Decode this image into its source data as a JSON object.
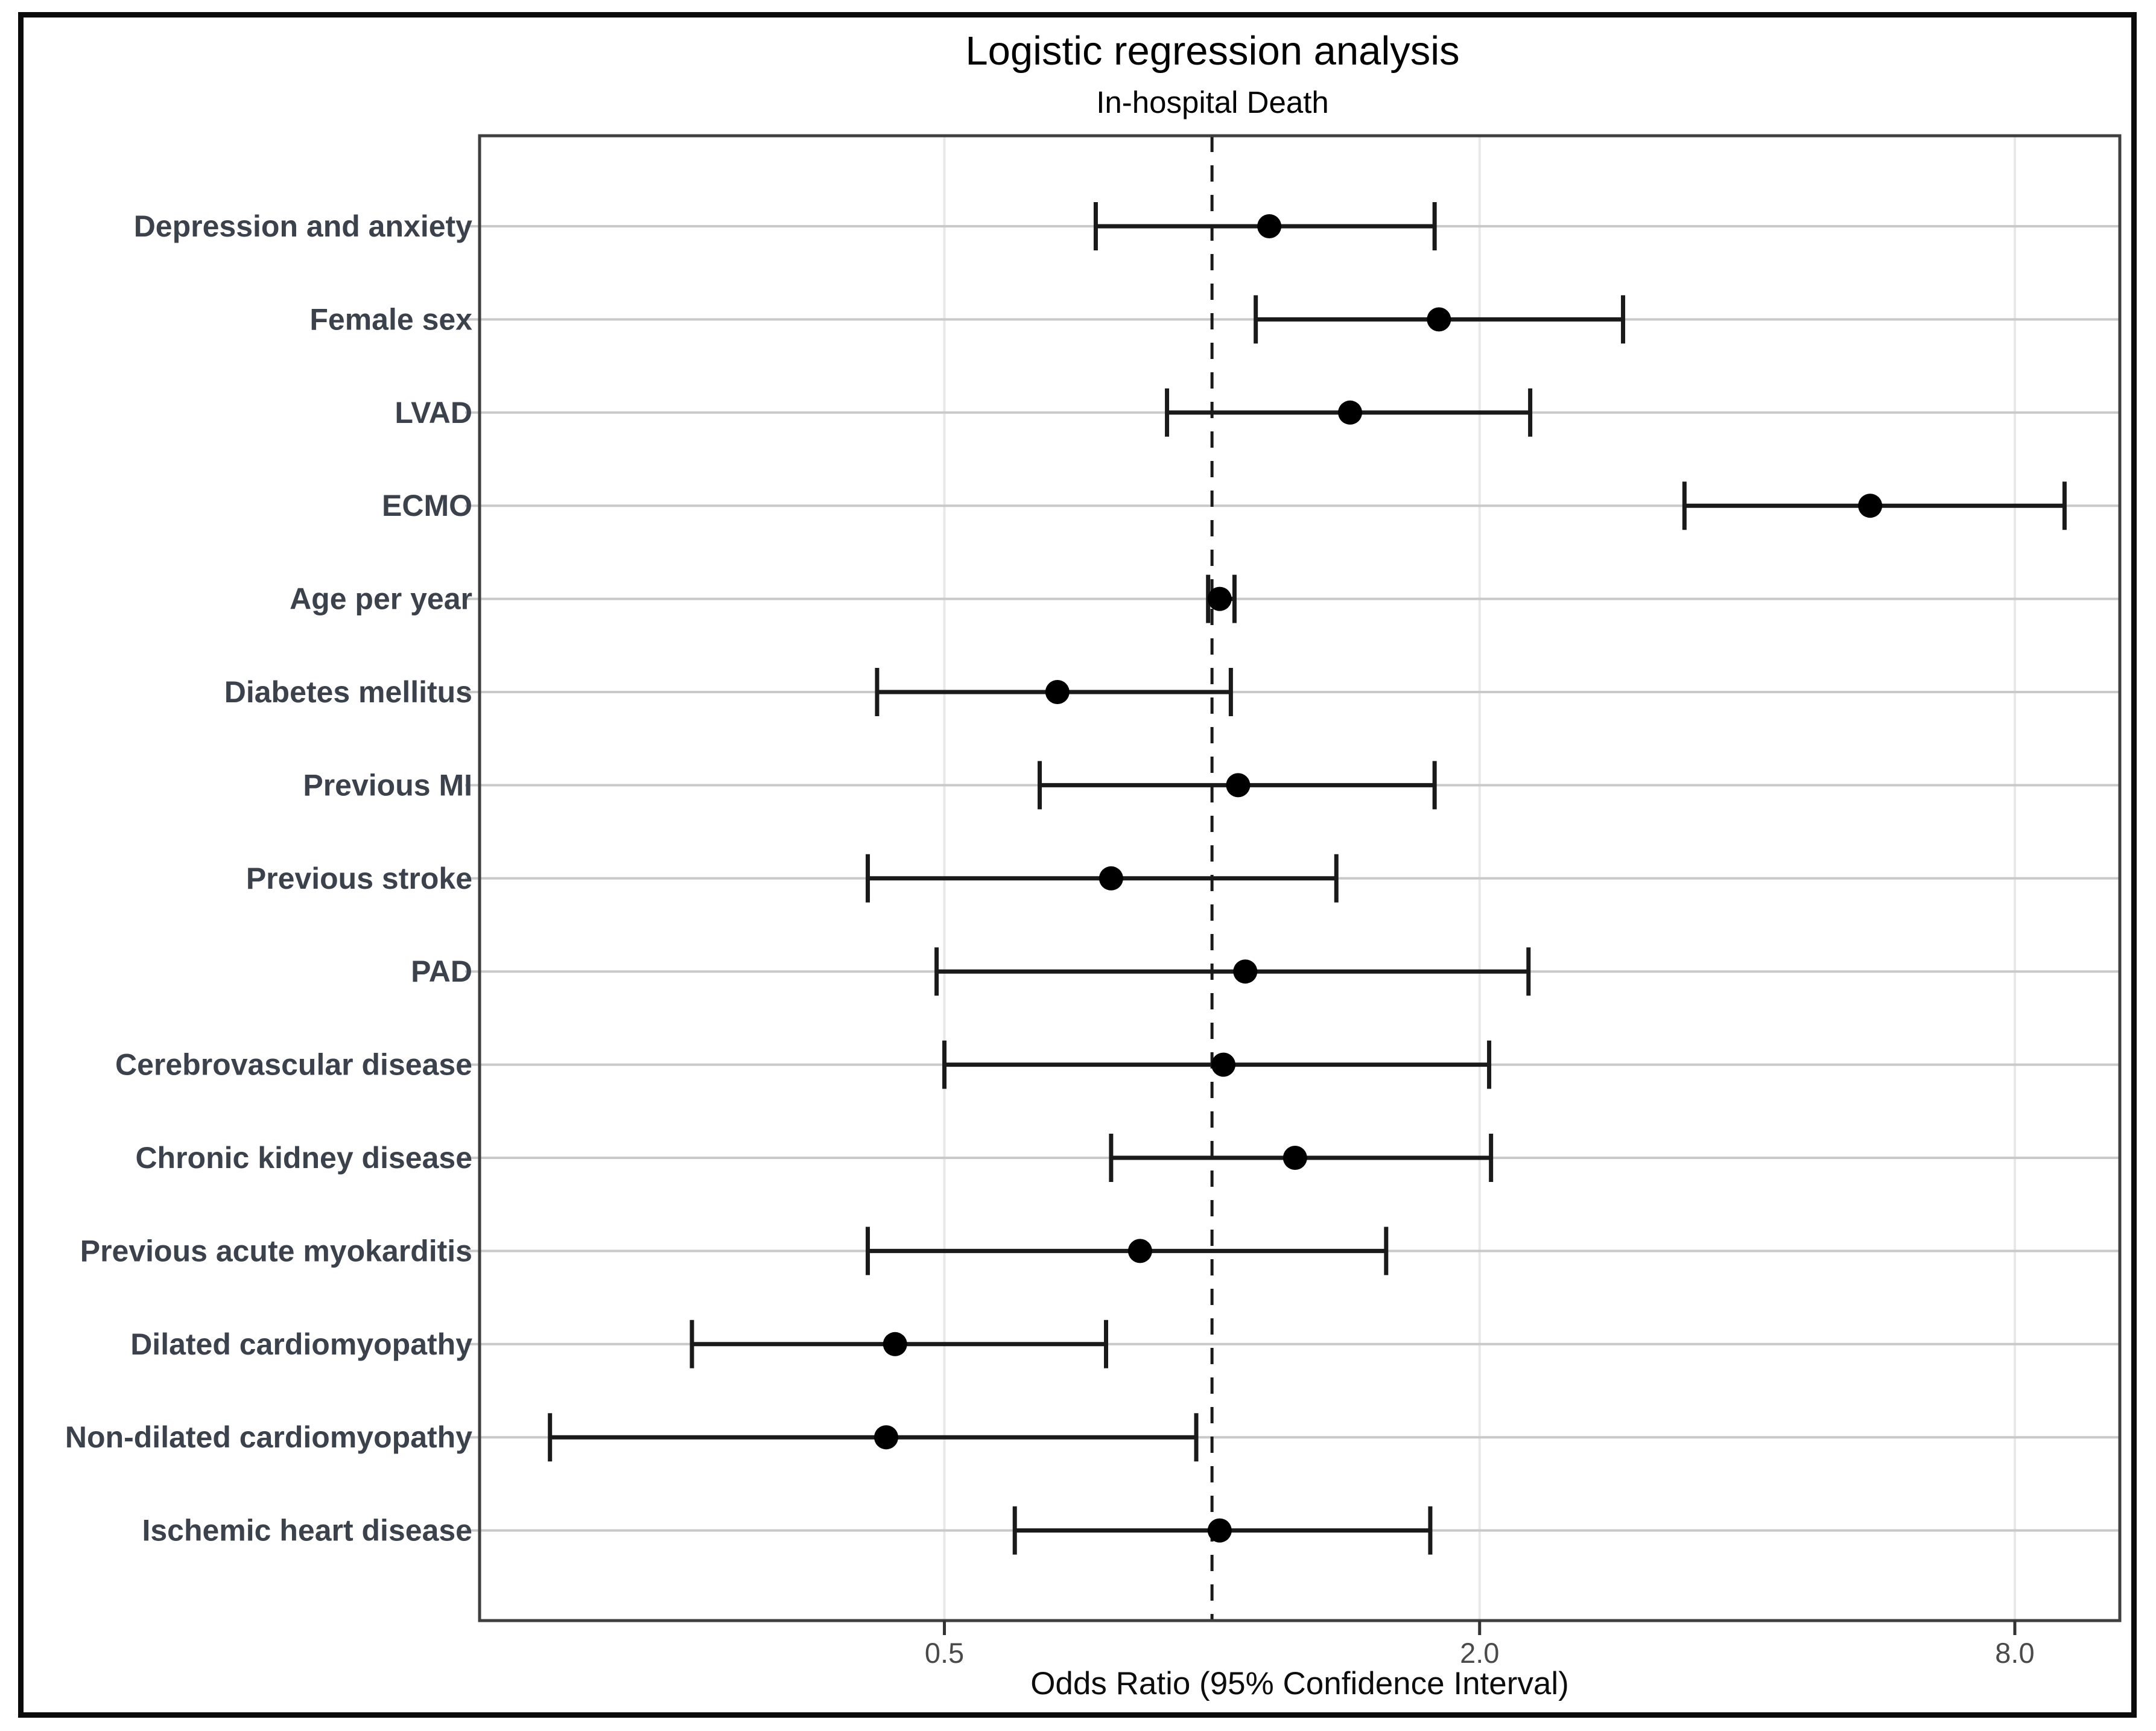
{
  "figure": {
    "title": "Logistic regression analysis",
    "subtitle": "In-hospital Death"
  },
  "chart_data": {
    "type": "scatter",
    "variant": "forest-plot",
    "title": "Logistic regression analysis",
    "subtitle": "In-hospital Death",
    "xlabel": "Odds Ratio (95% Confidence Interval)",
    "ylabel": "",
    "x_scale": "log",
    "xlim": [
      0.15,
      10.5
    ],
    "x_ticks": [
      0.5,
      2.0,
      8.0
    ],
    "x_tick_labels": [
      "0.5",
      "2.0",
      "8.0"
    ],
    "reference_line": 1.0,
    "grid": "horizontal-major-with-faint-vertical",
    "legend": "none",
    "rows": [
      {
        "label": "Depression and anxiety",
        "or": 1.16,
        "ci_low": 0.74,
        "ci_high": 1.78
      },
      {
        "label": "Female sex",
        "or": 1.8,
        "ci_low": 1.12,
        "ci_high": 2.9
      },
      {
        "label": "LVAD",
        "or": 1.43,
        "ci_low": 0.89,
        "ci_high": 2.28
      },
      {
        "label": "ECMO",
        "or": 5.5,
        "ci_low": 3.4,
        "ci_high": 9.1
      },
      {
        "label": "Age per year",
        "or": 1.02,
        "ci_low": 0.99,
        "ci_high": 1.06
      },
      {
        "label": "Diabetes mellitus",
        "or": 0.67,
        "ci_low": 0.42,
        "ci_high": 1.05
      },
      {
        "label": "Previous MI",
        "or": 1.07,
        "ci_low": 0.64,
        "ci_high": 1.78
      },
      {
        "label": "Previous stroke",
        "or": 0.77,
        "ci_low": 0.41,
        "ci_high": 1.38
      },
      {
        "label": "PAD",
        "or": 1.09,
        "ci_low": 0.49,
        "ci_high": 2.27
      },
      {
        "label": "Cerebrovascular disease",
        "or": 1.03,
        "ci_low": 0.5,
        "ci_high": 2.05
      },
      {
        "label": "Chronic kidney disease",
        "or": 1.24,
        "ci_low": 0.77,
        "ci_high": 2.06
      },
      {
        "label": "Previous acute myokarditis",
        "or": 0.83,
        "ci_low": 0.41,
        "ci_high": 1.57
      },
      {
        "label": "Dilated cardiomyopathy",
        "or": 0.44,
        "ci_low": 0.26,
        "ci_high": 0.76
      },
      {
        "label": "Non-dilated cardiomyopathy",
        "or": 0.43,
        "ci_low": 0.18,
        "ci_high": 0.96
      },
      {
        "label": "Ischemic heart disease",
        "or": 1.02,
        "ci_low": 0.6,
        "ci_high": 1.76
      }
    ],
    "colors": {
      "point": "#000000",
      "whisker": "#1a1a1a",
      "reference_line": "#1a1a1a",
      "grid_major": "#c9c9c9",
      "grid_minor_vertical": "#e8e8e8",
      "panel_border": "#3f3f3f",
      "axis_tick": "#333333",
      "axis_text": "#4a4a4a",
      "axis_title": "#0d0d0d",
      "row_label": "#3c424c",
      "title": "#000000"
    }
  }
}
